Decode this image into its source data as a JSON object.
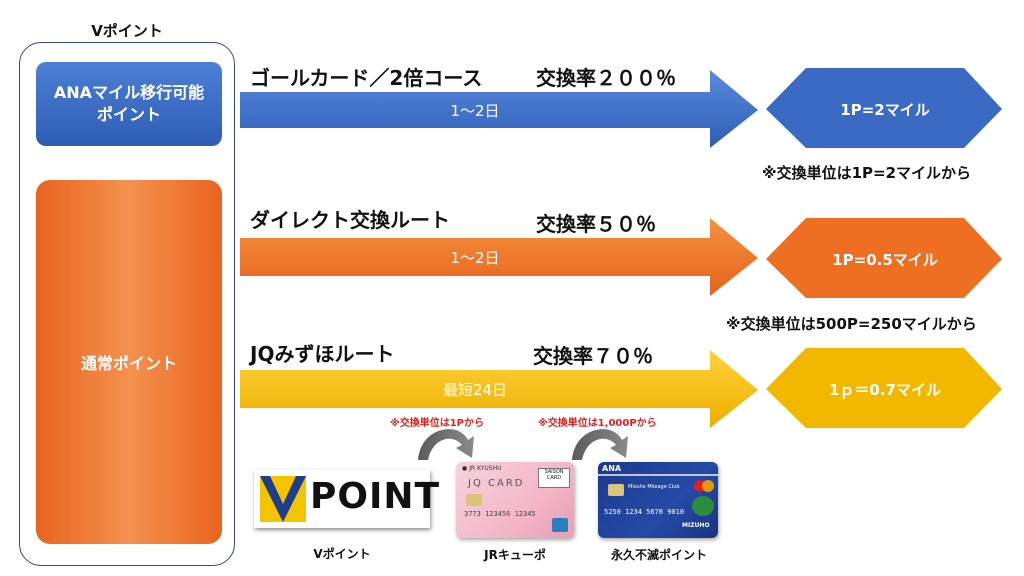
{
  "container": {
    "title": "Vポイント"
  },
  "left": {
    "ana_box": {
      "line1": "ANAマイル移行可能",
      "line2": "ポイント"
    },
    "normal_box": {
      "label": "通常ポイント"
    }
  },
  "routes": [
    {
      "title": "ゴールカード／2倍コース",
      "rate": "交換率２００％",
      "duration": "1～2日",
      "result": "1P=2マイル",
      "note": "※交換単位は1P=2マイルから",
      "color": "#3a6ac4"
    },
    {
      "title": "ダイレクト交換ルート",
      "rate": "交換率５０％",
      "duration": "1～2日",
      "result": "1P=0.5マイル",
      "note": "※交換単位は500P=250マイルから",
      "color": "#ee6f22"
    },
    {
      "title": "JQみずほルート",
      "rate": "交換率７０％",
      "duration": "最短24日",
      "result": "1ｐ＝0.7マイル",
      "note": "",
      "color": "#f2b800"
    }
  ],
  "bottom": {
    "vpoint_logo_text": "POINT",
    "vpoint_caption": "Vポイント",
    "jq_note": "※交換単位は1Pから",
    "jq_card_text": "JQ CARD",
    "jq_card_brand": "SAISON CARD",
    "jq_card_number": "3773 123456 12345",
    "jq_caption": "JRキューポ",
    "mizuho_note": "※交換単位は1,000Pから",
    "mizuho_card_text": "ANA",
    "mizuho_card_name": "Mizuho Mileage Club",
    "mizuho_card_number": "5250 1234 5678 9010",
    "mizuho_card_bank": "MIZUHO",
    "mizuho_caption": "永久不滅ポイント"
  }
}
